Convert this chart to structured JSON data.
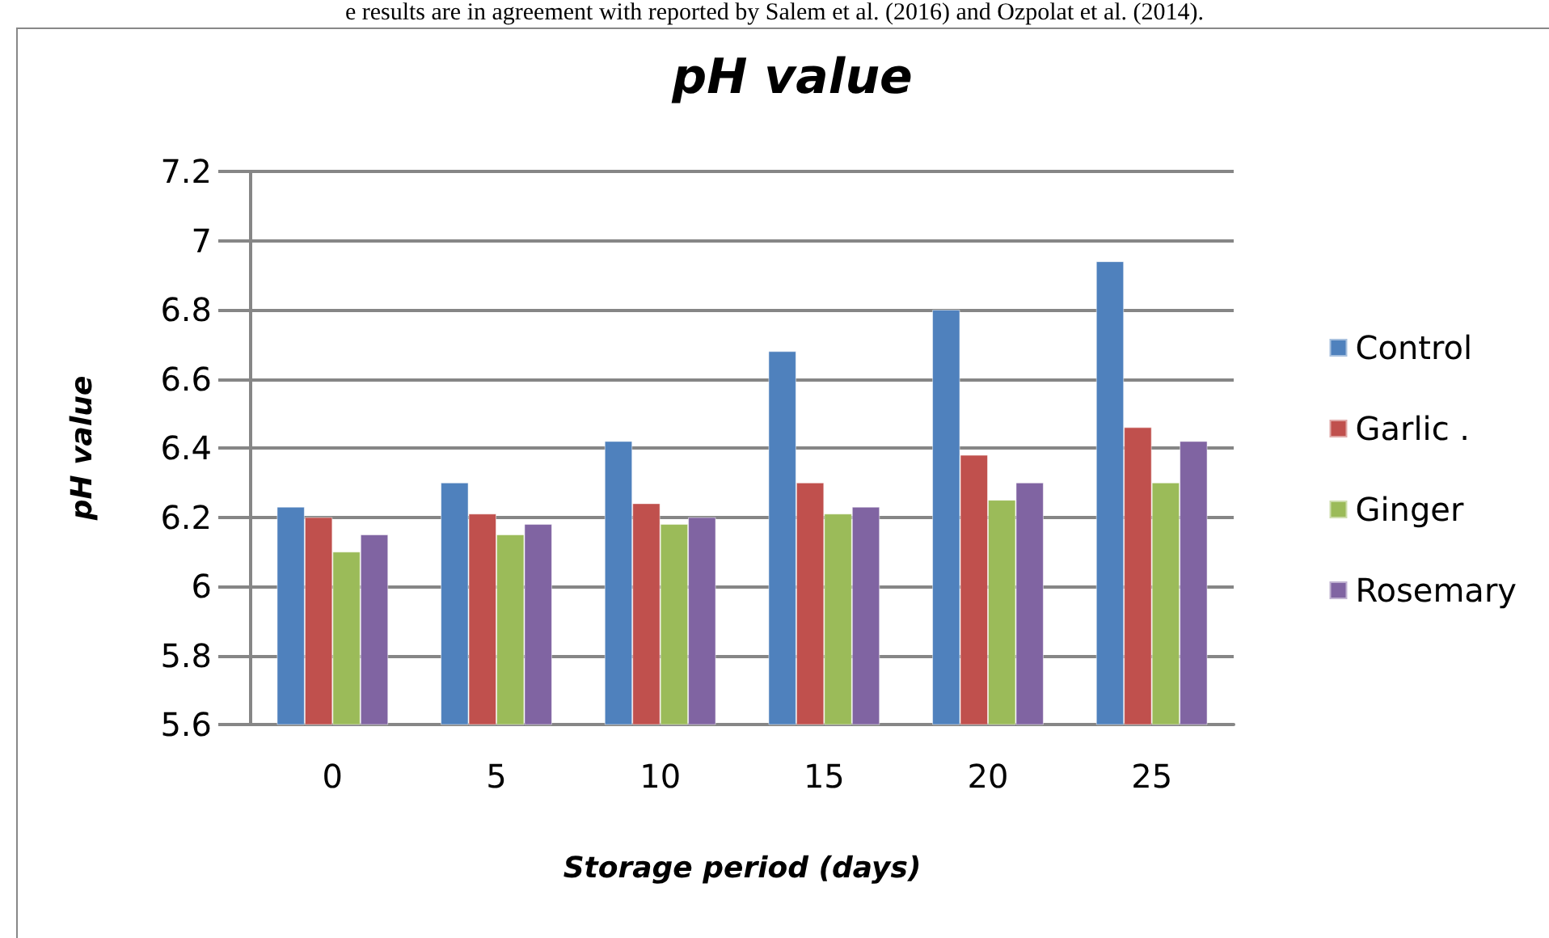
{
  "chart_data": {
    "type": "bar",
    "title": "pH value",
    "xlabel": "Storage period (days)",
    "ylabel": "pH value",
    "annotations": [
      "e results are in agreement with reported by Salem et al. (2016) and Ozpolat et al. (2014)."
    ],
    "categories": [
      "0",
      "5",
      "10",
      "15",
      "20",
      "25"
    ],
    "series": [
      {
        "name": "Control",
        "color": "#4f81bd",
        "values": [
          6.23,
          6.3,
          6.42,
          6.68,
          6.8,
          6.94
        ]
      },
      {
        "name": "Garlic .",
        "color": "#c0504d",
        "values": [
          6.2,
          6.21,
          6.24,
          6.3,
          6.38,
          6.46
        ]
      },
      {
        "name": "Ginger",
        "color": "#9bbb59",
        "values": [
          6.1,
          6.15,
          6.18,
          6.21,
          6.25,
          6.3
        ]
      },
      {
        "name": "Rosemary",
        "color": "#8064a2",
        "values": [
          6.15,
          6.18,
          6.2,
          6.23,
          6.3,
          6.42
        ]
      }
    ],
    "ylim": [
      5.6,
      7.2
    ],
    "yticks": [
      5.6,
      5.8,
      6,
      6.2,
      6.4,
      6.6,
      6.8,
      7,
      7.2
    ],
    "grid": "y",
    "legend": "right"
  }
}
